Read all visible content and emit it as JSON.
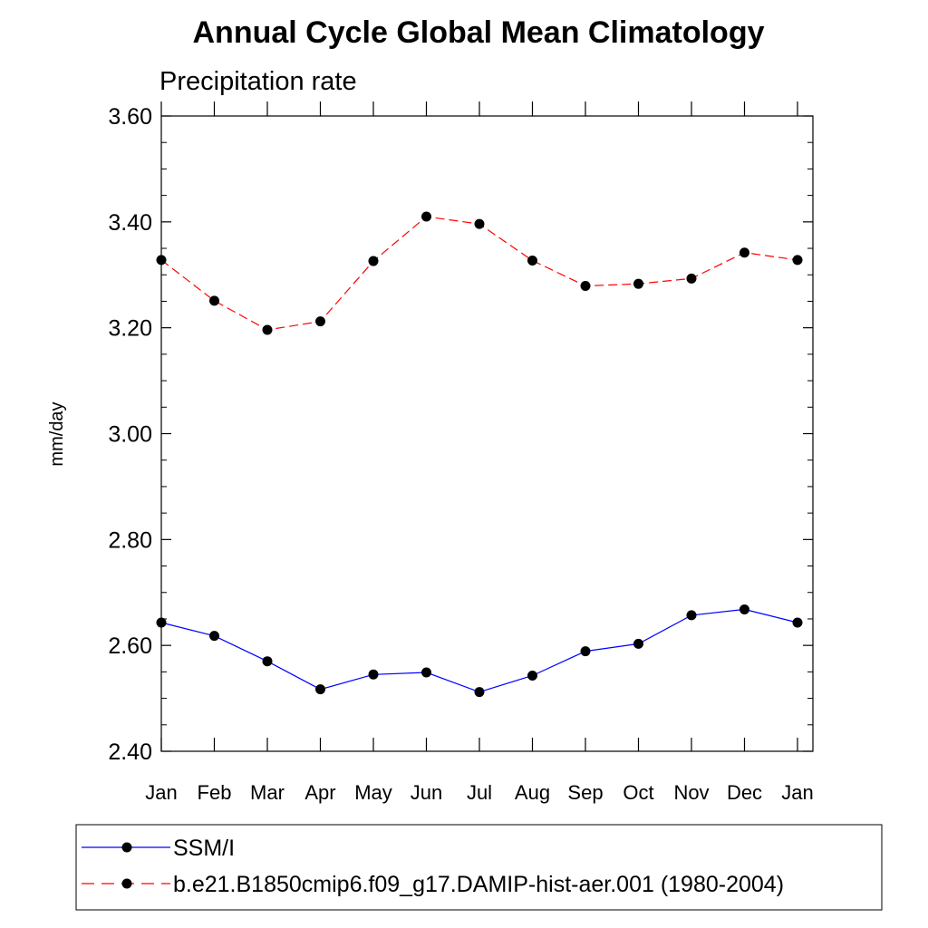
{
  "chart_data": {
    "type": "line",
    "title": "Annual Cycle Global Mean Climatology",
    "subtitle": "Precipitation rate",
    "xlabel": "",
    "ylabel": "mm/day",
    "categories": [
      "Jan",
      "Feb",
      "Mar",
      "Apr",
      "May",
      "Jun",
      "Jul",
      "Aug",
      "Sep",
      "Oct",
      "Nov",
      "Dec",
      "Jan"
    ],
    "y_ticks": [
      "2.40",
      "2.60",
      "2.80",
      "3.00",
      "3.20",
      "3.40",
      "3.60"
    ],
    "ylim": [
      2.4,
      3.6
    ],
    "grid": false,
    "legend_position": "bottom",
    "series": [
      {
        "name": "SSM/I",
        "color": "#0000ff",
        "line_style": "solid",
        "marker": "circle",
        "values": [
          2.643,
          2.618,
          2.57,
          2.517,
          2.545,
          2.549,
          2.512,
          2.543,
          2.589,
          2.603,
          2.657,
          2.668,
          2.643
        ]
      },
      {
        "name": "b.e21.B1850cmip6.f09_g17.DAMIP-hist-aer.001 (1980-2004)",
        "color": "#ff0000",
        "line_style": "dashed",
        "marker": "circle",
        "values": [
          3.328,
          3.251,
          3.196,
          3.212,
          3.326,
          3.41,
          3.396,
          3.327,
          3.279,
          3.283,
          3.293,
          3.342,
          3.328
        ]
      }
    ]
  }
}
